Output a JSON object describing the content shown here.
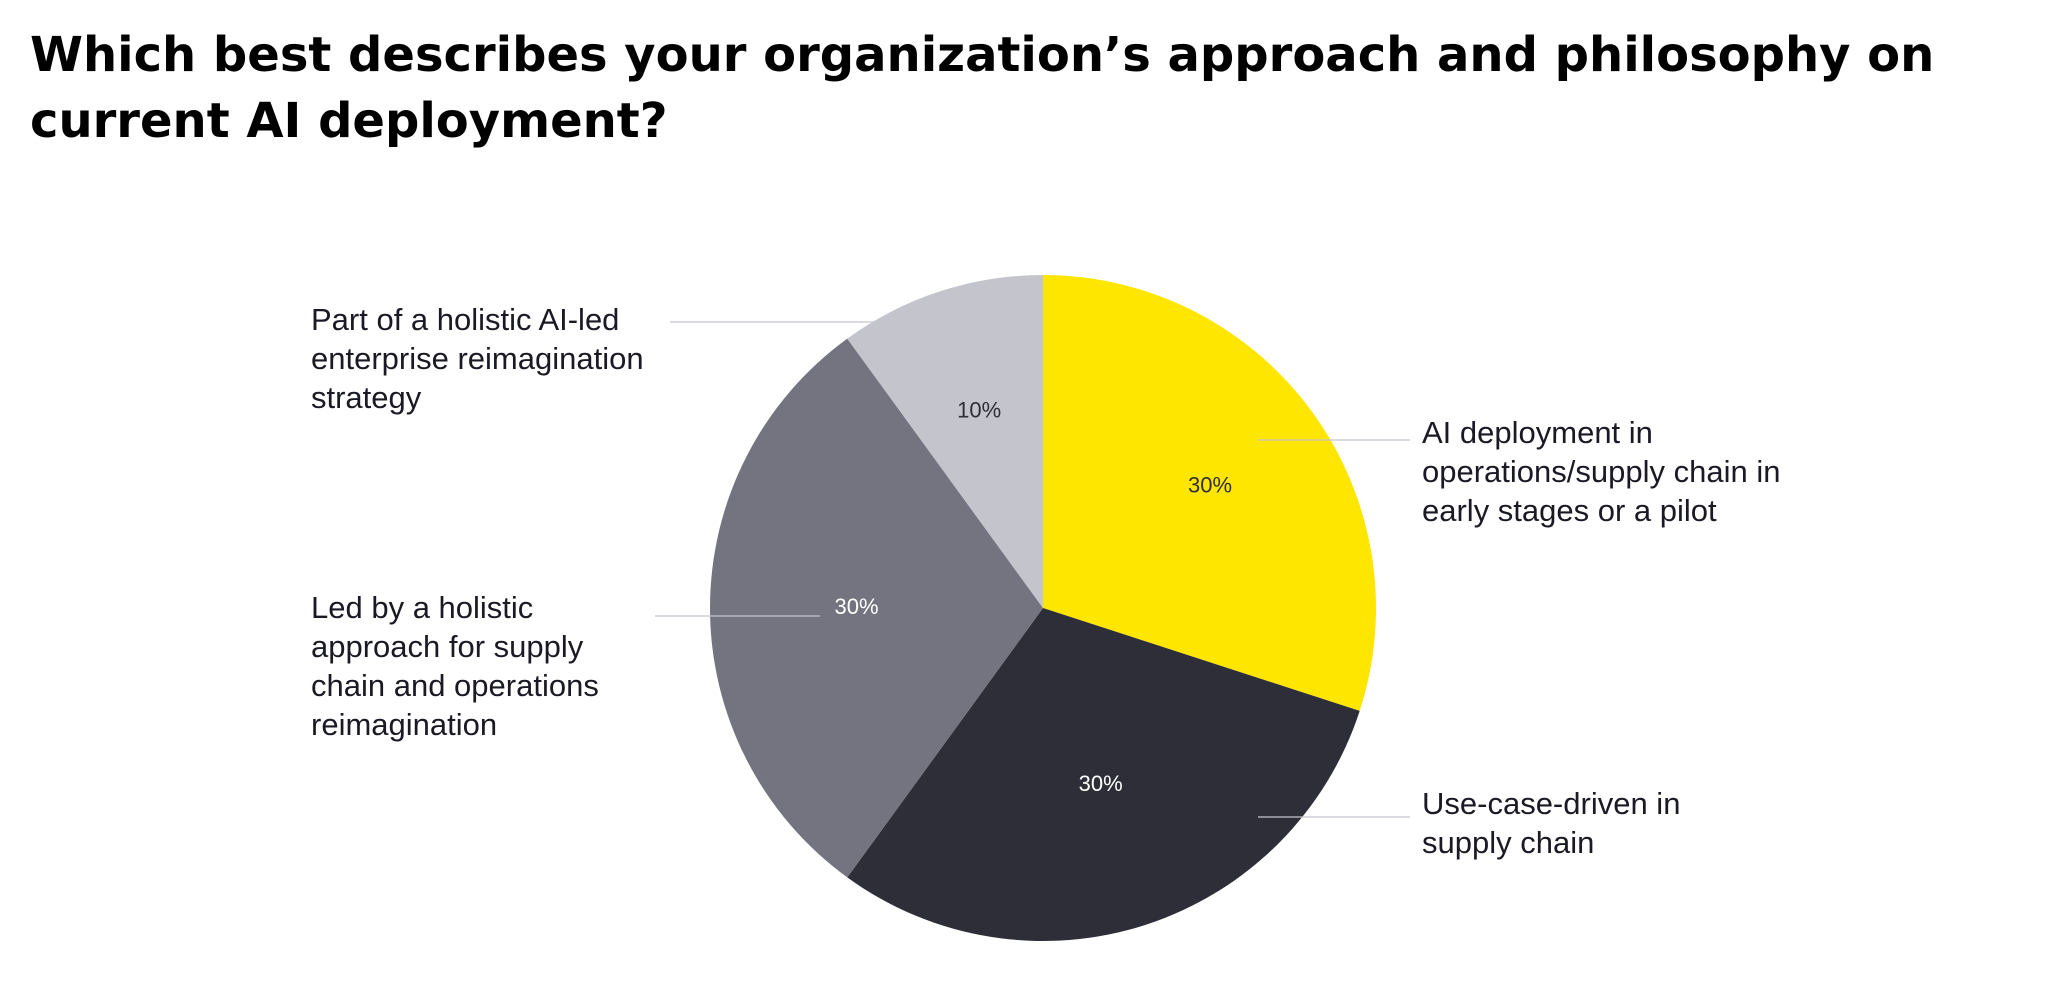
{
  "title": "Which best describes your organization’s approach and philosophy on current AI deployment?",
  "chart_data": {
    "type": "pie",
    "title": "Which best describes your organization’s approach and philosophy on current AI deployment?",
    "slices": [
      {
        "label": "AI deployment in operations/supply chain in early stages or a pilot",
        "value": 30,
        "value_label": "30%",
        "color": "#FFE600"
      },
      {
        "label": "Use-case-driven in supply chain",
        "value": 30,
        "value_label": "30%",
        "color": "#2E2E38"
      },
      {
        "label": "Led by a holistic approach for supply chain and operations reimagination",
        "value": 30,
        "value_label": "30%",
        "color": "#747480"
      },
      {
        "label": "Part of a holistic AI-led enterprise reimagination strategy",
        "value": 10,
        "value_label": "10%",
        "color": "#C4C4CD"
      }
    ],
    "start_angle": "12 o'clock",
    "direction": "clockwise",
    "legend": "none (leader-line labels)"
  }
}
